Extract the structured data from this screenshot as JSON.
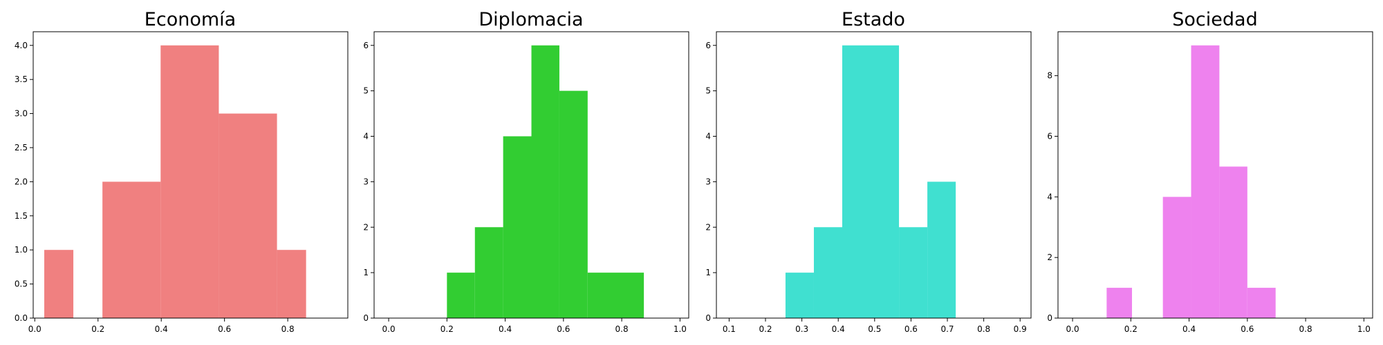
{
  "figure": {
    "background": "#ffffff"
  },
  "chart_data": [
    {
      "type": "bar",
      "title": "Economía",
      "color": "#f08080",
      "bins": [
        {
          "x0": 0.03,
          "x1": 0.122,
          "count": 1
        },
        {
          "x0": 0.214,
          "x1": 0.398,
          "count": 2
        },
        {
          "x0": 0.398,
          "x1": 0.582,
          "count": 4
        },
        {
          "x0": 0.582,
          "x1": 0.766,
          "count": 3
        },
        {
          "x0": 0.766,
          "x1": 0.858,
          "count": 1
        }
      ],
      "xlim": [
        -0.005,
        0.99
      ],
      "ylim": [
        0,
        4.2
      ],
      "xticks": [
        0.0,
        0.2,
        0.4,
        0.6,
        0.8
      ],
      "xtick_labels": [
        "0.0",
        "0.2",
        "0.4",
        "0.6",
        "0.8"
      ],
      "yticks": [
        0,
        0.5,
        1,
        1.5,
        2,
        2.5,
        3,
        3.5,
        4
      ],
      "ytick_labels": [
        "0.0",
        "0.5",
        "1.0",
        "1.5",
        "2.0",
        "2.5",
        "3.0",
        "3.5",
        "4.0"
      ],
      "xlabel": "",
      "ylabel": "",
      "grid": false
    },
    {
      "type": "bar",
      "title": "Diplomacia",
      "color": "#32cd32",
      "bins": [
        {
          "x0": 0.2,
          "x1": 0.296,
          "count": 1
        },
        {
          "x0": 0.296,
          "x1": 0.393,
          "count": 2
        },
        {
          "x0": 0.393,
          "x1": 0.49,
          "count": 4
        },
        {
          "x0": 0.49,
          "x1": 0.586,
          "count": 6
        },
        {
          "x0": 0.586,
          "x1": 0.683,
          "count": 5
        },
        {
          "x0": 0.683,
          "x1": 0.876,
          "count": 1
        }
      ],
      "xlim": [
        -0.05,
        1.03
      ],
      "ylim": [
        0,
        6.3
      ],
      "xticks": [
        0.0,
        0.2,
        0.4,
        0.6,
        0.8,
        1.0
      ],
      "xtick_labels": [
        "0.0",
        "0.2",
        "0.4",
        "0.6",
        "0.8",
        "1.0"
      ],
      "yticks": [
        0,
        1,
        2,
        3,
        4,
        5,
        6
      ],
      "ytick_labels": [
        "0",
        "1",
        "2",
        "3",
        "4",
        "5",
        "6"
      ],
      "xlabel": "",
      "ylabel": "",
      "grid": false
    },
    {
      "type": "bar",
      "title": "Estado",
      "color": "#40e0d0",
      "bins": [
        {
          "x0": 0.255,
          "x1": 0.333,
          "count": 1
        },
        {
          "x0": 0.333,
          "x1": 0.411,
          "count": 2
        },
        {
          "x0": 0.411,
          "x1": 0.567,
          "count": 6
        },
        {
          "x0": 0.567,
          "x1": 0.645,
          "count": 2
        },
        {
          "x0": 0.645,
          "x1": 0.723,
          "count": 3
        }
      ],
      "xlim": [
        0.065,
        0.93
      ],
      "ylim": [
        0,
        6.3
      ],
      "xticks": [
        0.1,
        0.2,
        0.3,
        0.4,
        0.5,
        0.6,
        0.7,
        0.8,
        0.9
      ],
      "xtick_labels": [
        "0.1",
        "0.2",
        "0.3",
        "0.4",
        "0.5",
        "0.6",
        "0.7",
        "0.8",
        "0.9"
      ],
      "yticks": [
        0,
        1,
        2,
        3,
        4,
        5,
        6
      ],
      "ytick_labels": [
        "0",
        "1",
        "2",
        "3",
        "4",
        "5",
        "6"
      ],
      "xlabel": "",
      "ylabel": "",
      "grid": false
    },
    {
      "type": "bar",
      "title": "Sociedad",
      "color": "#ee82ee",
      "bins": [
        {
          "x0": 0.117,
          "x1": 0.204,
          "count": 1
        },
        {
          "x0": 0.31,
          "x1": 0.407,
          "count": 4
        },
        {
          "x0": 0.407,
          "x1": 0.504,
          "count": 9
        },
        {
          "x0": 0.504,
          "x1": 0.6,
          "count": 5
        },
        {
          "x0": 0.6,
          "x1": 0.697,
          "count": 1
        }
      ],
      "xlim": [
        -0.05,
        1.03
      ],
      "ylim": [
        0,
        9.45
      ],
      "xticks": [
        0.0,
        0.2,
        0.4,
        0.6,
        0.8,
        1.0
      ],
      "xtick_labels": [
        "0.0",
        "0.2",
        "0.4",
        "0.6",
        "0.8",
        "1.0"
      ],
      "yticks": [
        0,
        2,
        4,
        6,
        8
      ],
      "ytick_labels": [
        "0",
        "2",
        "4",
        "6",
        "8"
      ],
      "xlabel": "",
      "ylabel": "",
      "grid": false
    }
  ]
}
